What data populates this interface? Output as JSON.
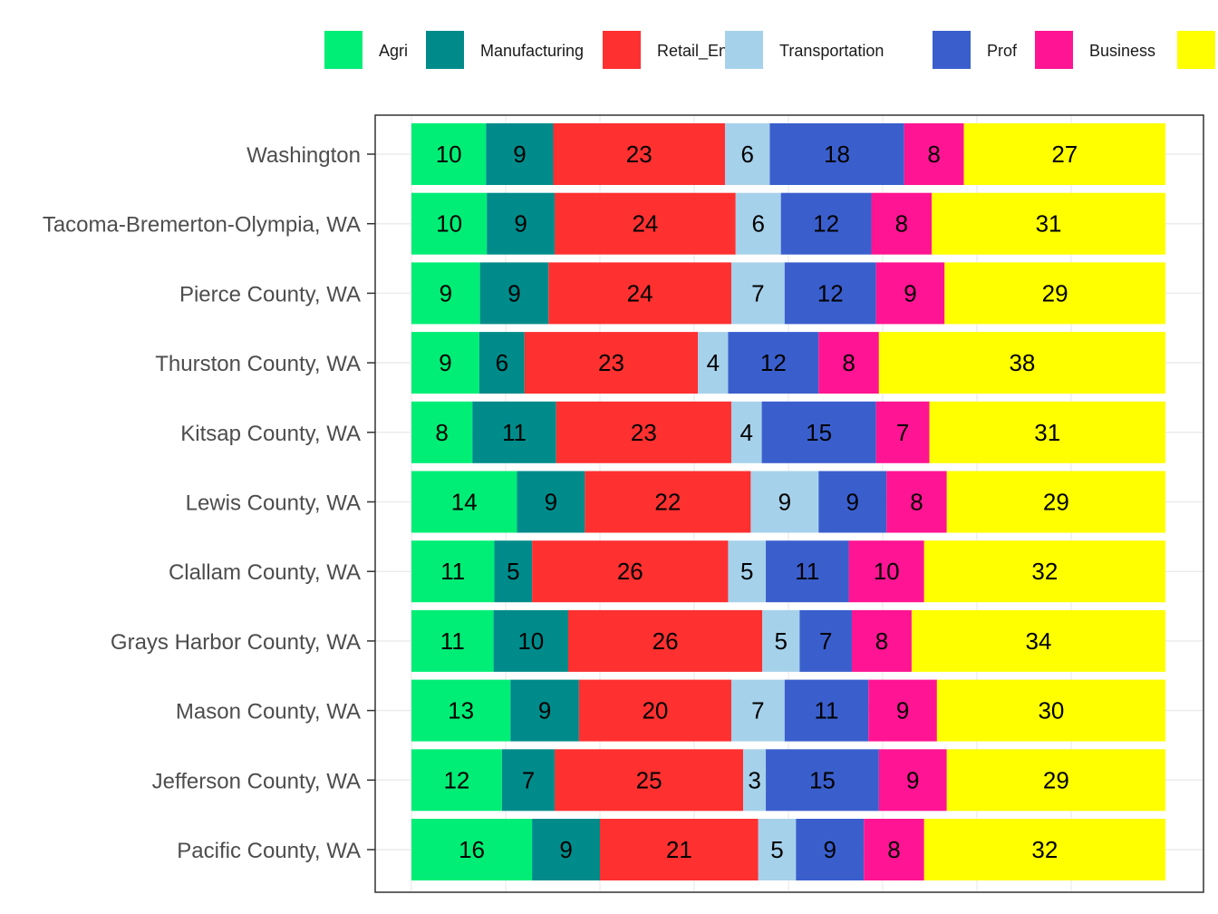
{
  "chart_data": {
    "type": "bar",
    "orientation": "horizontal",
    "stacked": true,
    "legend_position": "top",
    "grid": true,
    "xlim": [
      0,
      100
    ],
    "categories": [
      "Washington",
      "Tacoma-Bremerton-Olympia, WA",
      "Pierce County, WA",
      "Thurston County, WA",
      "Kitsap County, WA",
      "Lewis County, WA",
      "Clallam County, WA",
      "Grays Harbor County, WA",
      "Mason County, WA",
      "Jefferson County, WA",
      "Pacific County, WA"
    ],
    "series": [
      {
        "name": "Agri",
        "color": "#00EE76",
        "values": [
          10,
          10,
          9,
          9,
          8,
          14,
          11,
          11,
          13,
          12,
          16
        ]
      },
      {
        "name": "Manufacturing",
        "color": "#008B8B",
        "values": [
          9,
          9,
          9,
          6,
          11,
          9,
          5,
          10,
          9,
          7,
          9
        ]
      },
      {
        "name": "Retail_Ent",
        "color": "#FF3030",
        "values": [
          23,
          24,
          24,
          23,
          23,
          22,
          26,
          26,
          20,
          25,
          21
        ]
      },
      {
        "name": "Transportation",
        "color": "#A6D1EB",
        "values": [
          6,
          6,
          7,
          4,
          4,
          9,
          5,
          5,
          7,
          3,
          5
        ]
      },
      {
        "name": "Prof",
        "color": "#3A5FCD",
        "values": [
          18,
          12,
          12,
          12,
          15,
          9,
          11,
          7,
          11,
          15,
          9
        ]
      },
      {
        "name": "Business",
        "color": "#FF1493",
        "values": [
          8,
          8,
          9,
          8,
          7,
          8,
          10,
          8,
          9,
          9,
          8
        ]
      },
      {
        "name": "",
        "color": "#FFFF00",
        "values": [
          27,
          31,
          29,
          38,
          31,
          29,
          32,
          34,
          30,
          29,
          32
        ]
      }
    ]
  }
}
